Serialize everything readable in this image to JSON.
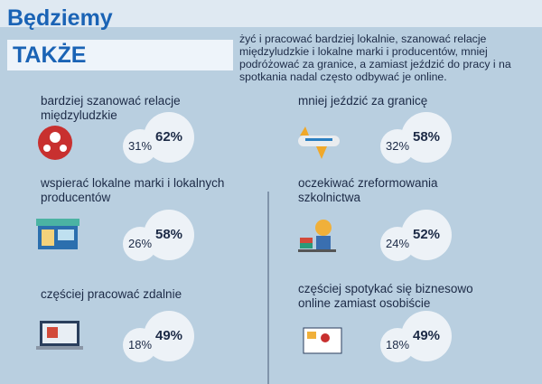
{
  "header": {
    "title": "Będziemy",
    "subtitle": "TAKŻE",
    "intro": "żyć i pracować bardziej lokalnie, szanować relacje międzyludzkie i lokalne marki i producentów, mniej podróżować za granice, a zamiast jeździć do pracy i na spotkania nadal często odbywać je online."
  },
  "items": [
    {
      "label": "bardziej szanować relacje międzyludzkie",
      "percentages": [
        "31%",
        "62%"
      ]
    },
    {
      "label": "mniej jeździć za granicę",
      "percentages": [
        "32%",
        "58%"
      ]
    },
    {
      "label": "wspierać lokalne marki i lokalnych producentów",
      "percentages": [
        "26%",
        "58%"
      ]
    },
    {
      "label": "oczekiwać zreformowania szkolnictwa",
      "percentages": [
        "24%",
        "52%"
      ]
    },
    {
      "label": "częściej pracować zdalnie",
      "percentages": [
        "18%",
        "49%"
      ]
    },
    {
      "label": "częściej spotykać się biznesowo online zamiast osobiście",
      "percentages": [
        "18%",
        "49%"
      ]
    }
  ]
}
